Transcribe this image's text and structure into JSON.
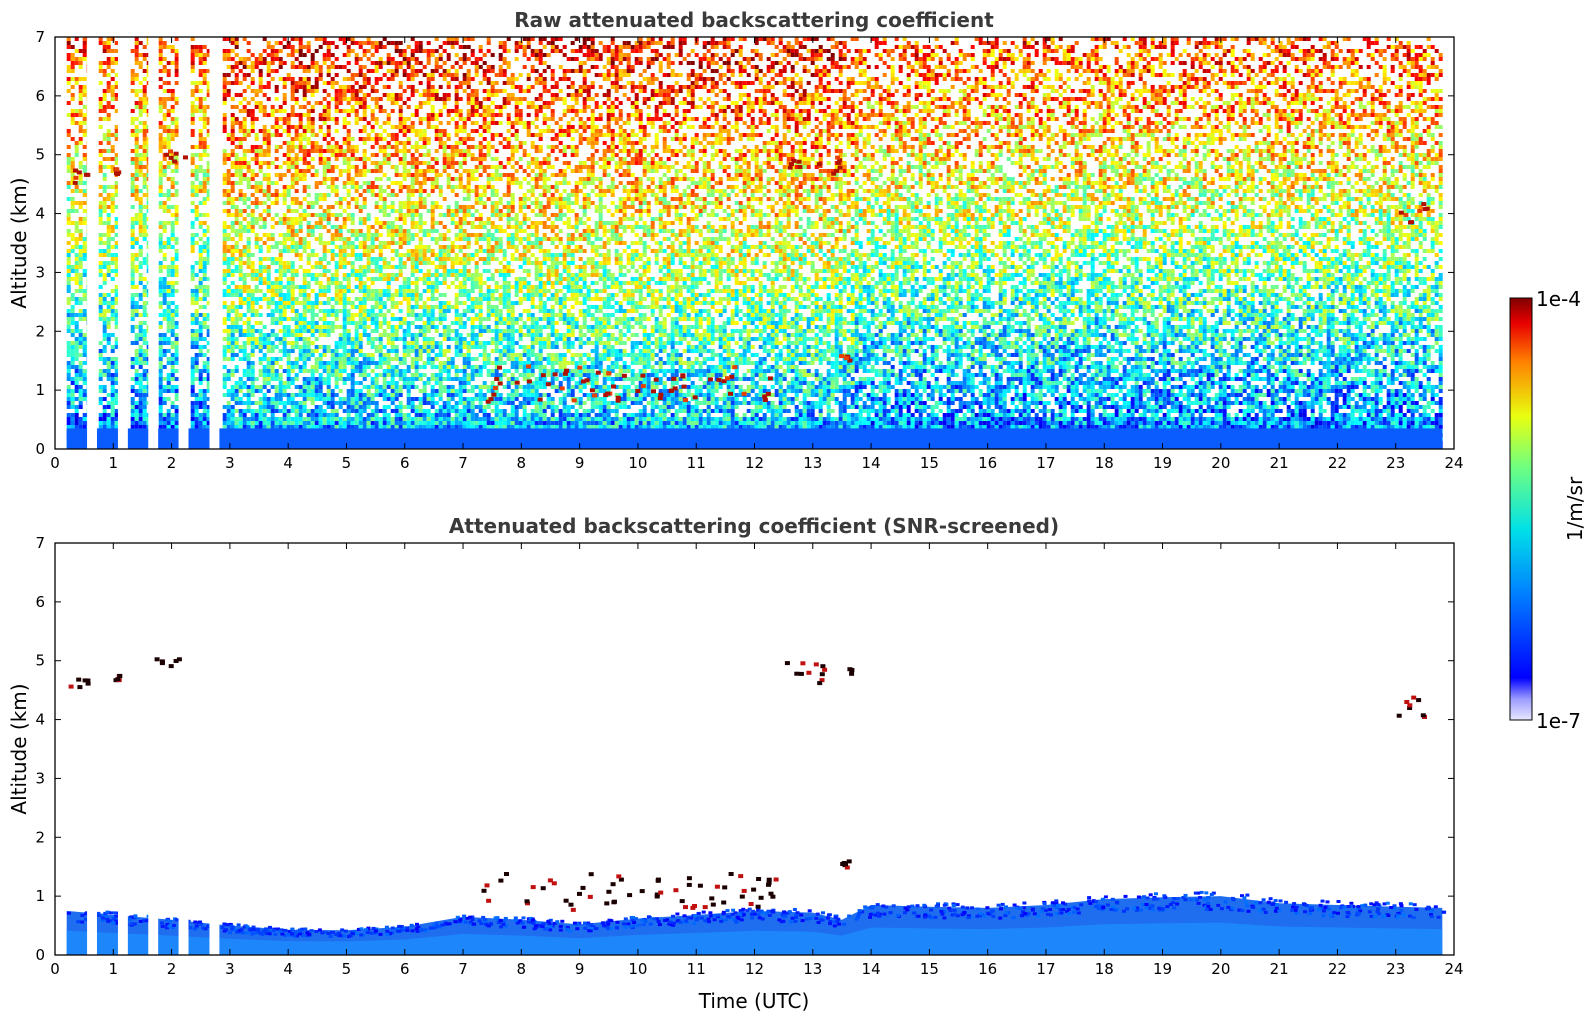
{
  "chart_data": [
    {
      "type": "heatmap",
      "title": "Raw attenuated backscattering coefficient",
      "xlabel": "",
      "ylabel": "Altitude (km)",
      "xlim": [
        0,
        24
      ],
      "ylim": [
        0,
        7
      ],
      "x_ticks": [
        "0",
        "1",
        "2",
        "3",
        "4",
        "5",
        "6",
        "7",
        "8",
        "9",
        "10",
        "11",
        "12",
        "13",
        "14",
        "15",
        "16",
        "17",
        "18",
        "19",
        "20",
        "21",
        "22",
        "23",
        "24"
      ],
      "y_ticks": [
        "0",
        "1",
        "2",
        "3",
        "4",
        "5",
        "6",
        "7"
      ],
      "data_extent_time": [
        0.2,
        23.8
      ],
      "data_gaps_time": [
        [
          0.55,
          0.72
        ],
        [
          1.08,
          1.25
        ],
        [
          1.6,
          1.77
        ],
        [
          2.12,
          2.29
        ],
        [
          2.65,
          2.82
        ]
      ],
      "features": [
        {
          "kind": "cloud",
          "time": [
            0.2,
            0.55
          ],
          "altitude": [
            4.55,
            4.8
          ]
        },
        {
          "kind": "cloud",
          "time": [
            1.0,
            1.08
          ],
          "altitude": [
            4.7,
            4.8
          ]
        },
        {
          "kind": "cloud",
          "time": [
            1.8,
            2.3
          ],
          "altitude": [
            4.9,
            5.1
          ]
        },
        {
          "kind": "cloud",
          "time": [
            12.5,
            13.6
          ],
          "altitude": [
            4.65,
            5.0
          ]
        },
        {
          "kind": "cloud",
          "time": [
            22.9,
            23.6
          ],
          "altitude": [
            3.85,
            4.35
          ]
        },
        {
          "kind": "cloud",
          "time": [
            7.3,
            12.5
          ],
          "altitude": [
            0.8,
            1.45
          ]
        },
        {
          "kind": "cloud",
          "time": [
            13.45,
            13.6
          ],
          "altitude": [
            1.5,
            1.65
          ]
        }
      ]
    },
    {
      "type": "heatmap",
      "title": "Attenuated backscattering coefficient (SNR-screened)",
      "xlabel": "Time (UTC)",
      "ylabel": "Altitude (km)",
      "xlim": [
        0,
        24
      ],
      "ylim": [
        0,
        7
      ],
      "x_ticks": [
        "0",
        "1",
        "2",
        "3",
        "4",
        "5",
        "6",
        "7",
        "8",
        "9",
        "10",
        "11",
        "12",
        "13",
        "14",
        "15",
        "16",
        "17",
        "18",
        "19",
        "20",
        "21",
        "22",
        "23",
        "24"
      ],
      "y_ticks": [
        "0",
        "1",
        "2",
        "3",
        "4",
        "5",
        "6",
        "7"
      ],
      "boundary_layer_top_km": [
        [
          0.2,
          0.75
        ],
        [
          1,
          0.68
        ],
        [
          2,
          0.6
        ],
        [
          3,
          0.5
        ],
        [
          4,
          0.43
        ],
        [
          5,
          0.42
        ],
        [
          6,
          0.48
        ],
        [
          7,
          0.65
        ],
        [
          8,
          0.6
        ],
        [
          9,
          0.52
        ],
        [
          10,
          0.62
        ],
        [
          11,
          0.68
        ],
        [
          12,
          0.75
        ],
        [
          13,
          0.72
        ],
        [
          13.5,
          0.6
        ],
        [
          14,
          0.85
        ],
        [
          15,
          0.82
        ],
        [
          16,
          0.8
        ],
        [
          17,
          0.85
        ],
        [
          18,
          0.95
        ],
        [
          19,
          0.98
        ],
        [
          20,
          1.0
        ],
        [
          21,
          0.88
        ],
        [
          22,
          0.85
        ],
        [
          23,
          0.82
        ],
        [
          23.8,
          0.8
        ]
      ],
      "features": [
        {
          "kind": "cloud",
          "time": [
            0.2,
            0.55
          ],
          "altitude": [
            4.55,
            4.8
          ]
        },
        {
          "kind": "cloud",
          "time": [
            1.0,
            1.08
          ],
          "altitude": [
            4.7,
            4.8
          ]
        },
        {
          "kind": "cloud",
          "time": [
            1.7,
            2.1
          ],
          "altitude": [
            4.9,
            5.1
          ]
        },
        {
          "kind": "cloud",
          "time": [
            12.5,
            13.7
          ],
          "altitude": [
            4.65,
            5.0
          ]
        },
        {
          "kind": "cloud",
          "time": [
            22.9,
            23.6
          ],
          "altitude": [
            3.85,
            4.45
          ]
        },
        {
          "kind": "cloud",
          "time": [
            7.3,
            12.5
          ],
          "altitude": [
            0.8,
            1.45
          ]
        },
        {
          "kind": "cloud",
          "time": [
            13.45,
            13.6
          ],
          "altitude": [
            1.5,
            1.7
          ]
        }
      ]
    }
  ],
  "colorbar": {
    "label": "1/m/sr",
    "max_label": "1e-4",
    "min_label": "1e-7",
    "scale": "log",
    "range": [
      1e-07,
      0.0001
    ],
    "colormap": "jet"
  }
}
